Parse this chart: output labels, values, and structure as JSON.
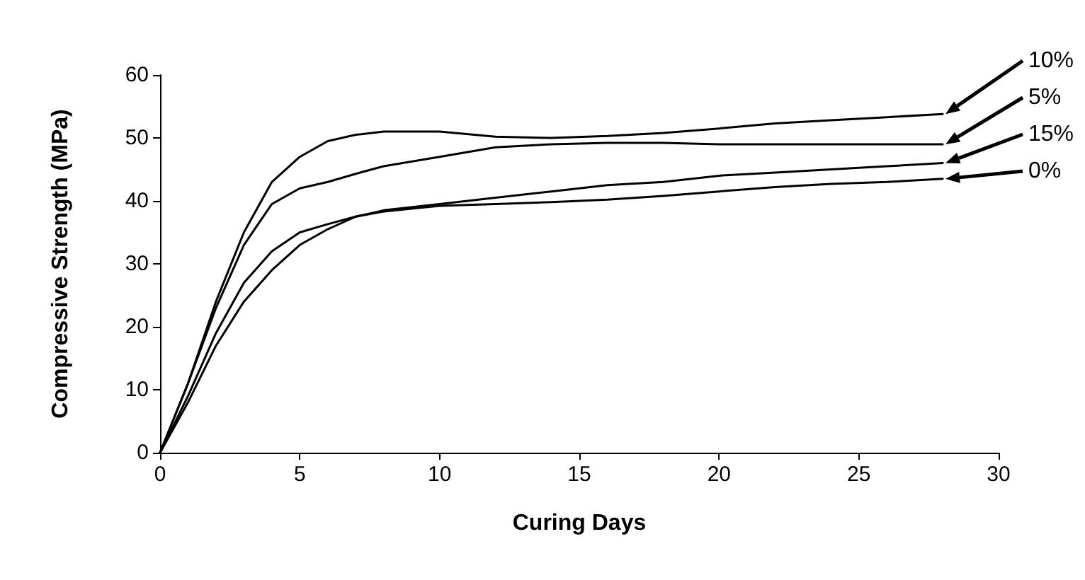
{
  "chart_data": {
    "type": "line",
    "xlabel": "Curing Days",
    "ylabel": "Compressive Strength (MPa)",
    "x": [
      0,
      1,
      2,
      3,
      4,
      5,
      6,
      7,
      8,
      10,
      12,
      14,
      16,
      18,
      20,
      22,
      24,
      26,
      28
    ],
    "series": [
      {
        "name": "10%",
        "color": "#000000",
        "values": [
          0,
          11,
          24,
          35,
          43,
          47,
          49.5,
          50.5,
          51,
          51,
          50.2,
          50,
          50.3,
          50.8,
          51.5,
          52.3,
          52.8,
          53.3,
          53.8
        ]
      },
      {
        "name": "5%",
        "color": "#000000",
        "values": [
          0,
          11,
          23,
          33,
          39.5,
          42,
          43,
          44.3,
          45.5,
          47,
          48.5,
          49,
          49.2,
          49.2,
          49,
          49,
          49,
          49,
          49
        ]
      },
      {
        "name": "15%",
        "color": "#000000",
        "values": [
          0,
          9,
          19,
          27,
          32,
          35,
          36.3,
          37.5,
          38.5,
          39.5,
          40.5,
          41.5,
          42.5,
          43,
          44,
          44.5,
          45,
          45.5,
          46
        ]
      },
      {
        "name": "0%",
        "color": "#000000",
        "values": [
          0,
          8,
          17,
          24,
          29,
          33,
          35.5,
          37.5,
          38.3,
          39.2,
          39.5,
          39.8,
          40.2,
          40.8,
          41.5,
          42.2,
          42.7,
          43,
          43.5
        ]
      }
    ],
    "xlim": [
      0,
      30
    ],
    "xticks": [
      0,
      5,
      10,
      15,
      20,
      25,
      30
    ],
    "ylim": [
      0,
      60
    ],
    "yticks": [
      0,
      10,
      20,
      30,
      40,
      50,
      60
    ],
    "grid": false,
    "legend": "right",
    "marker": "none",
    "line_style": "solid"
  }
}
